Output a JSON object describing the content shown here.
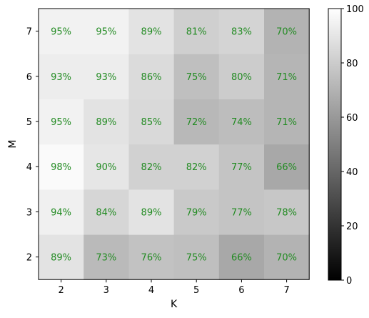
{
  "chart_data": {
    "type": "heatmap",
    "title": "",
    "xlabel": "K",
    "ylabel": "M",
    "x_categories": [
      "2",
      "3",
      "4",
      "5",
      "6",
      "7"
    ],
    "y_categories": [
      "2",
      "3",
      "4",
      "5",
      "6",
      "7"
    ],
    "values": [
      [
        89,
        73,
        76,
        75,
        66,
        70
      ],
      [
        94,
        84,
        89,
        79,
        77,
        78
      ],
      [
        98,
        90,
        82,
        82,
        77,
        66
      ],
      [
        95,
        89,
        85,
        72,
        74,
        71
      ],
      [
        93,
        93,
        86,
        75,
        80,
        71
      ],
      [
        95,
        95,
        89,
        81,
        83,
        70
      ]
    ],
    "cell_labels": [
      [
        "89%",
        "73%",
        "76%",
        "75%",
        "66%",
        "70%"
      ],
      [
        "94%",
        "84%",
        "89%",
        "79%",
        "77%",
        "78%"
      ],
      [
        "98%",
        "90%",
        "82%",
        "82%",
        "77%",
        "66%"
      ],
      [
        "95%",
        "89%",
        "85%",
        "72%",
        "74%",
        "71%"
      ],
      [
        "93%",
        "93%",
        "86%",
        "75%",
        "80%",
        "71%"
      ],
      [
        "95%",
        "95%",
        "89%",
        "81%",
        "83%",
        "70%"
      ]
    ],
    "annotation_color": "#228B22",
    "colormap": "gray",
    "colorbar": {
      "min": 0,
      "max": 100,
      "ticks": [
        "0",
        "20",
        "40",
        "60",
        "80",
        "100"
      ]
    },
    "grid": false
  }
}
